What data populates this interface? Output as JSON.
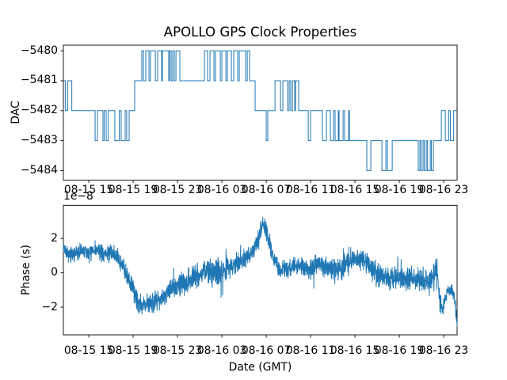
{
  "figure": {
    "title": "APOLLO GPS Clock Properties",
    "background": "#ffffff",
    "line_color": "#1f77b4",
    "axis_color": "#000000",
    "x_tick_hours": [
      15,
      19,
      23,
      27,
      31,
      35,
      39,
      43,
      47
    ],
    "x_tick_labels": [
      "08-15 15",
      "08-15 19",
      "08-15 23",
      "08-16 03",
      "08-16 07",
      "08-16 11",
      "08-16 15",
      "08-16 19",
      "08-16 23"
    ],
    "xlim_hours": [
      12.71,
      48.21
    ],
    "x_unit": "hours since 08-15 00:00 GMT"
  },
  "chart_data": [
    {
      "type": "line",
      "subtype": "step",
      "title": "APOLLO GPS Clock Properties",
      "ylabel": "DAC",
      "yticks": [
        -5480,
        -5481,
        -5482,
        -5483,
        -5484
      ],
      "ytick_labels": [
        "−5480",
        "−5481",
        "−5482",
        "−5483",
        "−5484"
      ],
      "ylim": [
        -5484.32,
        -5479.81
      ],
      "grid": false,
      "legend": "none",
      "steps_hour_value": [
        [
          12.71,
          -5481
        ],
        [
          12.88,
          -5482
        ],
        [
          13.09,
          -5481
        ],
        [
          13.47,
          -5482
        ],
        [
          15.57,
          -5483
        ],
        [
          15.78,
          -5482
        ],
        [
          16.28,
          -5483
        ],
        [
          16.39,
          -5482
        ],
        [
          16.57,
          -5483
        ],
        [
          16.75,
          -5482
        ],
        [
          17.35,
          -5483
        ],
        [
          17.75,
          -5482
        ],
        [
          17.92,
          -5483
        ],
        [
          18.28,
          -5482
        ],
        [
          18.42,
          -5483
        ],
        [
          18.64,
          -5482
        ],
        [
          19.14,
          -5481
        ],
        [
          19.78,
          -5480
        ],
        [
          19.93,
          -5481
        ],
        [
          20.14,
          -5480
        ],
        [
          20.43,
          -5481
        ],
        [
          20.57,
          -5480
        ],
        [
          21.0,
          -5481
        ],
        [
          21.21,
          -5480
        ],
        [
          21.57,
          -5481
        ],
        [
          21.64,
          -5480
        ],
        [
          22.21,
          -5481
        ],
        [
          22.29,
          -5480
        ],
        [
          22.43,
          -5481
        ],
        [
          22.57,
          -5480
        ],
        [
          22.71,
          -5481
        ],
        [
          22.86,
          -5480
        ],
        [
          23.21,
          -5481
        ],
        [
          25.43,
          -5480
        ],
        [
          25.71,
          -5481
        ],
        [
          25.93,
          -5480
        ],
        [
          26.29,
          -5481
        ],
        [
          26.43,
          -5480
        ],
        [
          26.86,
          -5481
        ],
        [
          27.0,
          -5480
        ],
        [
          27.36,
          -5481
        ],
        [
          27.5,
          -5480
        ],
        [
          27.86,
          -5481
        ],
        [
          28.07,
          -5480
        ],
        [
          28.43,
          -5481
        ],
        [
          28.57,
          -5480
        ],
        [
          29.14,
          -5481
        ],
        [
          29.29,
          -5480
        ],
        [
          29.5,
          -5481
        ],
        [
          30.0,
          -5482
        ],
        [
          31.0,
          -5483
        ],
        [
          31.14,
          -5482
        ],
        [
          31.79,
          -5481
        ],
        [
          32.29,
          -5482
        ],
        [
          32.5,
          -5481
        ],
        [
          32.93,
          -5482
        ],
        [
          33.07,
          -5481
        ],
        [
          33.21,
          -5482
        ],
        [
          33.36,
          -5481
        ],
        [
          33.57,
          -5482
        ],
        [
          33.64,
          -5481
        ],
        [
          33.93,
          -5482
        ],
        [
          34.79,
          -5483
        ],
        [
          35.0,
          -5482
        ],
        [
          36.07,
          -5483
        ],
        [
          36.43,
          -5482
        ],
        [
          36.79,
          -5483
        ],
        [
          37.07,
          -5482
        ],
        [
          37.21,
          -5483
        ],
        [
          37.5,
          -5482
        ],
        [
          37.57,
          -5483
        ],
        [
          37.93,
          -5482
        ],
        [
          38.07,
          -5483
        ],
        [
          38.43,
          -5482
        ],
        [
          38.5,
          -5483
        ],
        [
          40.07,
          -5484
        ],
        [
          40.43,
          -5483
        ],
        [
          41.43,
          -5484
        ],
        [
          41.79,
          -5483
        ],
        [
          41.93,
          -5484
        ],
        [
          42.36,
          -5483
        ],
        [
          44.71,
          -5484
        ],
        [
          44.86,
          -5483
        ],
        [
          44.96,
          -5484
        ],
        [
          45.14,
          -5483
        ],
        [
          45.25,
          -5484
        ],
        [
          45.43,
          -5483
        ],
        [
          45.54,
          -5484
        ],
        [
          45.79,
          -5483
        ],
        [
          45.89,
          -5484
        ],
        [
          46.07,
          -5483
        ],
        [
          46.79,
          -5482
        ],
        [
          47.15,
          -5483
        ],
        [
          47.45,
          -5482
        ],
        [
          47.6,
          -5483
        ],
        [
          47.9,
          -5482
        ]
      ]
    },
    {
      "type": "line",
      "subtype": "noisy",
      "ylabel": "Phase (s)",
      "xlabel": "Date (GMT)",
      "offset_label": "1e−8",
      "scale_factor": 1e-08,
      "yticks": [
        2,
        0,
        -2
      ],
      "ytick_labels": [
        "2",
        "0",
        "−2"
      ],
      "ylim": [
        -3.61,
        3.93
      ],
      "grid": false,
      "legend": "none",
      "envelope_hour_mean_amp": [
        [
          12.71,
          1.6,
          0.3
        ],
        [
          13.0,
          1.1,
          0.45
        ],
        [
          13.6,
          1.0,
          0.5
        ],
        [
          14.3,
          1.3,
          0.45
        ],
        [
          15.0,
          1.15,
          0.5
        ],
        [
          15.7,
          1.3,
          0.45
        ],
        [
          16.4,
          1.1,
          0.5
        ],
        [
          17.0,
          1.2,
          0.5
        ],
        [
          17.6,
          0.9,
          0.55
        ],
        [
          18.2,
          0.3,
          0.55
        ],
        [
          18.8,
          -0.7,
          0.6
        ],
        [
          19.3,
          -1.5,
          0.7
        ],
        [
          19.7,
          -1.9,
          0.8
        ],
        [
          20.2,
          -1.8,
          0.6
        ],
        [
          20.8,
          -1.7,
          0.6
        ],
        [
          21.4,
          -1.5,
          0.6
        ],
        [
          22.0,
          -1.2,
          0.6
        ],
        [
          22.6,
          -0.9,
          0.65
        ],
        [
          23.2,
          -0.7,
          0.7
        ],
        [
          23.8,
          -0.5,
          0.7
        ],
        [
          24.4,
          -0.2,
          0.75
        ],
        [
          25.0,
          -0.1,
          0.7
        ],
        [
          25.6,
          0.2,
          0.75
        ],
        [
          26.2,
          -0.1,
          0.8
        ],
        [
          26.8,
          0.1,
          0.8
        ],
        [
          27.4,
          0.3,
          0.7
        ],
        [
          28.0,
          0.4,
          0.65
        ],
        [
          28.6,
          0.7,
          0.6
        ],
        [
          29.2,
          0.9,
          0.6
        ],
        [
          29.7,
          1.2,
          0.55
        ],
        [
          30.1,
          1.6,
          0.55
        ],
        [
          30.4,
          2.3,
          0.5
        ],
        [
          30.7,
          2.9,
          0.5
        ],
        [
          31.0,
          2.5,
          0.5
        ],
        [
          31.3,
          1.7,
          0.5
        ],
        [
          31.7,
          0.8,
          0.5
        ],
        [
          32.1,
          0.3,
          0.5
        ],
        [
          32.7,
          0.2,
          0.55
        ],
        [
          33.3,
          0.3,
          0.55
        ],
        [
          33.9,
          0.5,
          0.55
        ],
        [
          34.5,
          0.3,
          0.6
        ],
        [
          35.1,
          0.2,
          0.6
        ],
        [
          35.7,
          0.6,
          0.6
        ],
        [
          36.3,
          0.4,
          0.6
        ],
        [
          36.9,
          0.3,
          0.65
        ],
        [
          37.5,
          0.2,
          0.7
        ],
        [
          38.1,
          0.4,
          0.75
        ],
        [
          38.7,
          0.7,
          0.7
        ],
        [
          39.3,
          0.8,
          0.65
        ],
        [
          39.9,
          0.7,
          0.6
        ],
        [
          40.5,
          0.3,
          0.7
        ],
        [
          41.1,
          0.0,
          0.7
        ],
        [
          41.7,
          -0.25,
          0.7
        ],
        [
          42.3,
          -0.3,
          0.7
        ],
        [
          42.9,
          -0.2,
          0.7
        ],
        [
          43.5,
          -0.4,
          0.65
        ],
        [
          44.1,
          -0.25,
          0.7
        ],
        [
          44.7,
          -0.4,
          0.65
        ],
        [
          45.3,
          -0.5,
          0.6
        ],
        [
          45.9,
          -0.4,
          0.6
        ],
        [
          46.2,
          -0.1,
          0.8
        ],
        [
          46.4,
          0.2,
          1.0
        ],
        [
          46.6,
          -1.3,
          0.7
        ],
        [
          46.85,
          -2.3,
          0.45
        ],
        [
          47.1,
          -1.6,
          0.4
        ],
        [
          47.4,
          -1.1,
          0.35
        ],
        [
          47.7,
          -1.0,
          0.35
        ],
        [
          47.95,
          -1.3,
          0.4
        ],
        [
          48.1,
          -2.1,
          0.5
        ],
        [
          48.21,
          -3.1,
          0.15
        ]
      ],
      "noise_seed": 7,
      "samples": 2400
    }
  ]
}
